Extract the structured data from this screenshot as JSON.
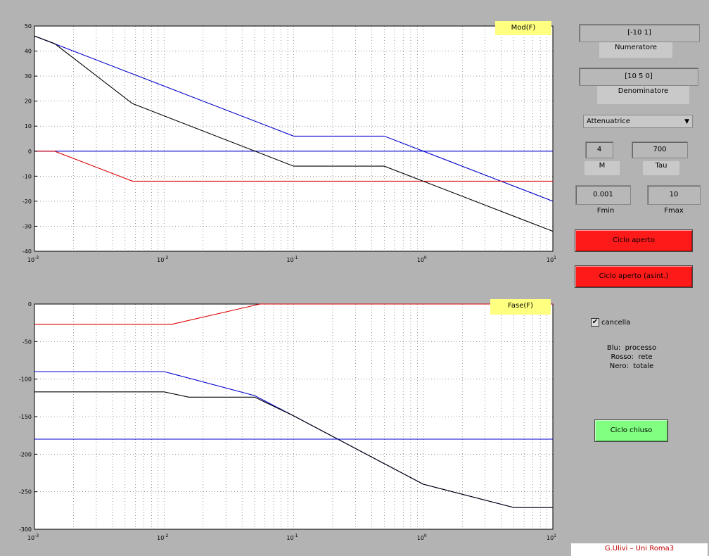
{
  "plots": {
    "mod_title": "Mod(F)",
    "fase_title": "Fase(F)"
  },
  "controls": {
    "numeratore_value": "[-10 1]",
    "numeratore_label": "Numeratore",
    "denominatore_value": "[10 5 0]",
    "denominatore_label": "Denominatore",
    "network_type": "Attenuatrice",
    "m_value": "4",
    "m_label": "M",
    "tau_value": "700",
    "tau_label": "Tau",
    "fmin_value": "0.001",
    "fmin_label": "Fmin",
    "fmax_value": "10",
    "fmax_label": "Fmax",
    "ciclo_aperto_label": "Ciclo aperto",
    "ciclo_aperto_asint_label": "Ciclo aperto (asint.)",
    "cancella_label": "cancella",
    "cancella_checked": true,
    "ciclo_chiuso_label": "Ciclo chiuso"
  },
  "legend": {
    "blu": "Blu:  processo",
    "rosso": "Rosso:  rete",
    "nero": "Nero:  totale"
  },
  "credit": "G.Ulivi – Uni Roma3",
  "colors": {
    "blue": "#0000cc",
    "red": "#dd0000",
    "black": "#000000",
    "grid": "#555555"
  },
  "chart_data": [
    {
      "type": "line",
      "title": "Mod(F)",
      "xscale": "log",
      "xlim": [
        0.001,
        10
      ],
      "ylim": [
        -40,
        50
      ],
      "x_tick_labels": [
        "10-3",
        "10-2",
        "10-1",
        "100",
        "101"
      ],
      "y_ticks": [
        -40,
        -30,
        -20,
        -10,
        0,
        10,
        20,
        30,
        40,
        50
      ],
      "grid": true,
      "series": [
        {
          "color": "blue",
          "points": [
            [
              0.001,
              46
            ],
            [
              0.1,
              6
            ],
            [
              0.5,
              6
            ],
            [
              10,
              -20
            ]
          ]
        },
        {
          "color": "blue",
          "points": [
            [
              0.001,
              0
            ],
            [
              10,
              0
            ]
          ]
        },
        {
          "color": "red",
          "points": [
            [
              0.001,
              0
            ],
            [
              0.00143,
              0
            ],
            [
              0.0057,
              -12
            ],
            [
              10,
              -12
            ]
          ]
        },
        {
          "color": "black",
          "points": [
            [
              0.001,
              46
            ],
            [
              0.00143,
              43
            ],
            [
              0.0057,
              19
            ],
            [
              0.1,
              -6
            ],
            [
              0.5,
              -6
            ],
            [
              10,
              -32
            ]
          ]
        }
      ]
    },
    {
      "type": "line",
      "title": "Fase(F)",
      "xscale": "log",
      "xlim": [
        0.001,
        10
      ],
      "ylim": [
        -300,
        0
      ],
      "x_tick_labels": [
        "10-3",
        "10-2",
        "10-1",
        "100",
        "101"
      ],
      "y_ticks": [
        -300,
        -250,
        -200,
        -150,
        -100,
        -50,
        0
      ],
      "grid": true,
      "series": [
        {
          "color": "red",
          "points": [
            [
              0.001,
              -27
            ],
            [
              0.0115,
              -27
            ],
            [
              0.055,
              0
            ],
            [
              10,
              0
            ]
          ]
        },
        {
          "color": "blue",
          "points": [
            [
              0.001,
              -90
            ],
            [
              0.01,
              -90
            ],
            [
              0.05,
              -122
            ],
            [
              0.1,
              -149
            ],
            [
              1,
              -240
            ],
            [
              5,
              -271
            ],
            [
              10,
              -271
            ]
          ]
        },
        {
          "color": "black",
          "points": [
            [
              0.001,
              -117
            ],
            [
              0.01,
              -117
            ],
            [
              0.0155,
              -124
            ],
            [
              0.05,
              -124
            ],
            [
              0.1,
              -149
            ],
            [
              1,
              -240
            ],
            [
              5,
              -271
            ],
            [
              10,
              -271
            ]
          ]
        },
        {
          "color": "blue",
          "points": [
            [
              0.001,
              -180
            ],
            [
              10,
              -180
            ]
          ]
        }
      ]
    }
  ]
}
